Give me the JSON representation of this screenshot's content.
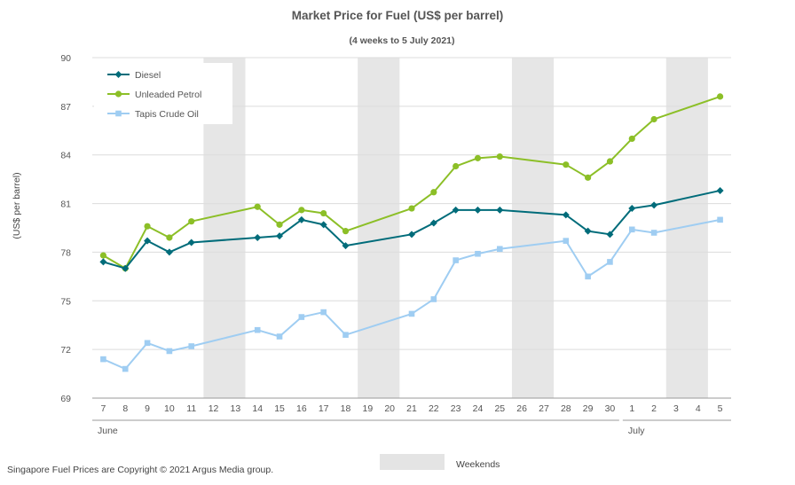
{
  "chart_data": {
    "type": "line",
    "title": "Market Price for Fuel (US$ per barrel)",
    "subtitle": "(4 weeks to 5 July 2021)",
    "ylabel": "(US$ per barrel)",
    "xlabel": "",
    "ylim": [
      69,
      90
    ],
    "yticks": [
      69,
      72,
      75,
      78,
      81,
      84,
      87,
      90
    ],
    "grid": true,
    "legend_position": "top-left",
    "categories": [
      "7",
      "8",
      "9",
      "10",
      "11",
      "12",
      "13",
      "14",
      "15",
      "16",
      "17",
      "18",
      "19",
      "20",
      "21",
      "22",
      "23",
      "24",
      "25",
      "26",
      "27",
      "28",
      "29",
      "30",
      "1",
      "2",
      "3",
      "4",
      "5"
    ],
    "months": [
      {
        "label": "June",
        "start_index": 0
      },
      {
        "label": "July",
        "start_index": 24
      }
    ],
    "weekends": [
      [
        5,
        6
      ],
      [
        12,
        13
      ],
      [
        19,
        20
      ],
      [
        26,
        27
      ]
    ],
    "weekend_label": "Weekends",
    "series": [
      {
        "name": "Diesel",
        "color": "#006c7a",
        "marker": "diamond",
        "values": [
          77.4,
          77.0,
          78.7,
          78.0,
          78.6,
          null,
          null,
          78.9,
          79.0,
          80.0,
          79.7,
          78.4,
          null,
          null,
          79.1,
          79.8,
          80.6,
          80.6,
          80.6,
          null,
          null,
          80.3,
          79.3,
          79.1,
          80.7,
          80.9,
          null,
          null,
          81.8
        ]
      },
      {
        "name": "Unleaded Petrol",
        "color": "#8cbf27",
        "marker": "circle",
        "values": [
          77.8,
          77.0,
          79.6,
          78.9,
          79.9,
          null,
          null,
          80.8,
          79.7,
          80.6,
          80.4,
          79.3,
          null,
          null,
          80.7,
          81.7,
          83.3,
          83.8,
          83.9,
          null,
          null,
          83.4,
          82.6,
          83.6,
          85.0,
          86.2,
          null,
          null,
          87.6
        ]
      },
      {
        "name": "Tapis Crude Oil",
        "color": "#9fcdf2",
        "marker": "square",
        "values": [
          71.4,
          70.8,
          72.4,
          71.9,
          72.2,
          null,
          null,
          73.2,
          72.8,
          74.0,
          74.3,
          72.9,
          null,
          null,
          74.2,
          75.1,
          77.5,
          77.9,
          78.2,
          null,
          null,
          78.7,
          76.5,
          77.4,
          79.4,
          79.2,
          null,
          null,
          80.0
        ]
      }
    ]
  },
  "footer": {
    "copyright": "Singapore Fuel Prices are Copyright © 2021 Argus Media group."
  }
}
